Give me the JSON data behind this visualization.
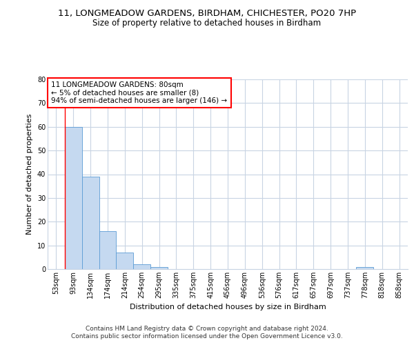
{
  "title1": "11, LONGMEADOW GARDENS, BIRDHAM, CHICHESTER, PO20 7HP",
  "title2": "Size of property relative to detached houses in Birdham",
  "xlabel": "Distribution of detached houses by size in Birdham",
  "ylabel": "Number of detached properties",
  "categories": [
    "53sqm",
    "93sqm",
    "134sqm",
    "174sqm",
    "214sqm",
    "254sqm",
    "295sqm",
    "335sqm",
    "375sqm",
    "415sqm",
    "456sqm",
    "496sqm",
    "536sqm",
    "576sqm",
    "617sqm",
    "657sqm",
    "697sqm",
    "737sqm",
    "778sqm",
    "818sqm",
    "858sqm"
  ],
  "values": [
    0,
    60,
    39,
    16,
    7,
    2,
    1,
    0,
    0,
    0,
    0,
    0,
    0,
    0,
    0,
    0,
    0,
    0,
    1,
    0,
    0
  ],
  "bar_color": "#c5d9f0",
  "bar_edge_color": "#5b9bd5",
  "grid_color": "#c8d4e3",
  "annotation_box_text": "11 LONGMEADOW GARDENS: 80sqm\n← 5% of detached houses are smaller (8)\n94% of semi-detached houses are larger (146) →",
  "ylim": [
    0,
    80
  ],
  "yticks": [
    0,
    10,
    20,
    30,
    40,
    50,
    60,
    70,
    80
  ],
  "footer1": "Contains HM Land Registry data © Crown copyright and database right 2024.",
  "footer2": "Contains public sector information licensed under the Open Government Licence v3.0.",
  "background_color": "#ffffff",
  "title1_fontsize": 9.5,
  "title2_fontsize": 8.5,
  "tick_fontsize": 7,
  "ylabel_fontsize": 8,
  "xlabel_fontsize": 8,
  "annotation_fontsize": 7.5,
  "footer_fontsize": 6.5
}
